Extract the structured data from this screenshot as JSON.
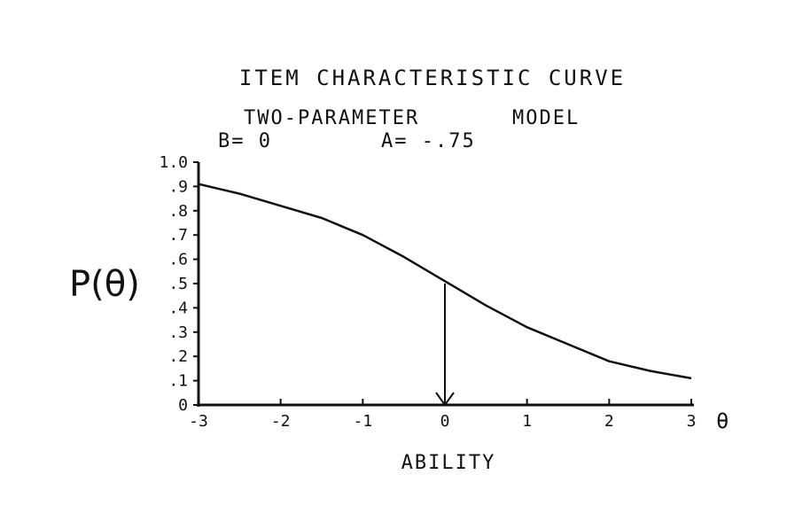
{
  "chart_data": {
    "type": "line",
    "title": "ITEM CHARACTERISTIC CURVE",
    "subtitle_left": "TWO-PARAMETER",
    "subtitle_right": "MODEL",
    "param_b_label": "B= 0",
    "param_a_label": "A= -.75",
    "ylabel": "P(θ)",
    "xlabel": "ABILITY",
    "x_symbol": "θ",
    "xlim": [
      -3,
      3
    ],
    "ylim": [
      0,
      1
    ],
    "x_ticks": [
      -3,
      -2,
      -1,
      0,
      1,
      2,
      3
    ],
    "x_tick_labels": [
      "-3",
      "-2",
      "-1",
      "0",
      "1",
      "2",
      "3"
    ],
    "y_ticks": [
      0,
      0.1,
      0.2,
      0.3,
      0.4,
      0.5,
      0.6,
      0.7,
      0.8,
      0.9,
      1.0
    ],
    "y_tick_labels": [
      "0",
      ".1",
      ".2",
      ".3",
      ".4",
      ".5",
      ".6",
      ".7",
      ".8",
      ".9",
      "1.0"
    ],
    "grid": false,
    "series": [
      {
        "x": [
          -3,
          -2.5,
          -2,
          -1.5,
          -1,
          -0.5,
          0,
          0.5,
          1,
          1.5,
          2,
          2.5,
          3
        ],
        "values": [
          0.91,
          0.87,
          0.82,
          0.77,
          0.7,
          0.61,
          0.51,
          0.41,
          0.32,
          0.25,
          0.18,
          0.14,
          0.11
        ]
      }
    ],
    "annotation": {
      "arrow_from": [
        0,
        0.5
      ],
      "arrow_to": [
        0,
        0
      ]
    }
  }
}
